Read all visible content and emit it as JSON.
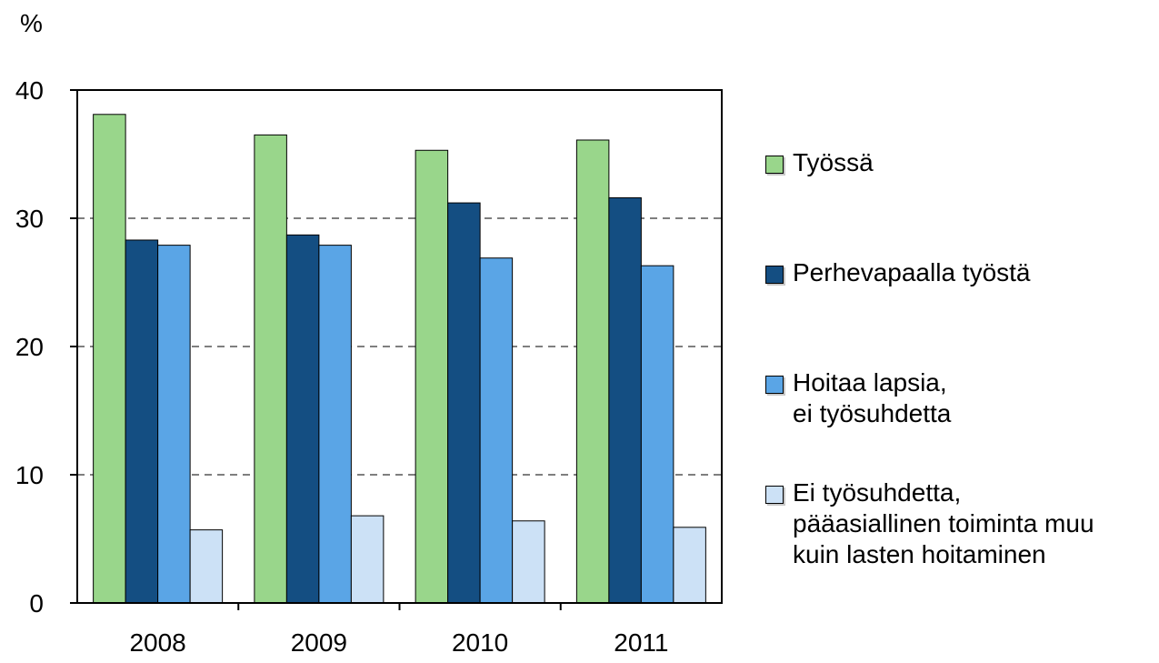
{
  "chart_data": {
    "type": "bar",
    "ylabel": "%",
    "ylim": [
      0,
      40
    ],
    "yticks": [
      0,
      10,
      20,
      30,
      40
    ],
    "grid": "dashed horizontal",
    "legend_position": "right",
    "categories": [
      "2008",
      "2009",
      "2010",
      "2011"
    ],
    "series": [
      {
        "name": "Työssä",
        "color": "#99d68b",
        "values": [
          38.1,
          36.5,
          35.3,
          36.1
        ]
      },
      {
        "name": "Perhevapaalla työstä",
        "color": "#144e82",
        "values": [
          28.3,
          28.7,
          31.2,
          31.6
        ]
      },
      {
        "name": "Hoitaa lapsia,\nei työsuhdetta",
        "color": "#5aa5e6",
        "values": [
          27.9,
          27.9,
          26.9,
          26.3
        ]
      },
      {
        "name": "Ei työsuhdetta,\npääasiallinen toiminta muu\nkuin lasten hoitaminen",
        "color": "#cce1f6",
        "values": [
          5.7,
          6.8,
          6.4,
          5.9
        ]
      }
    ]
  }
}
